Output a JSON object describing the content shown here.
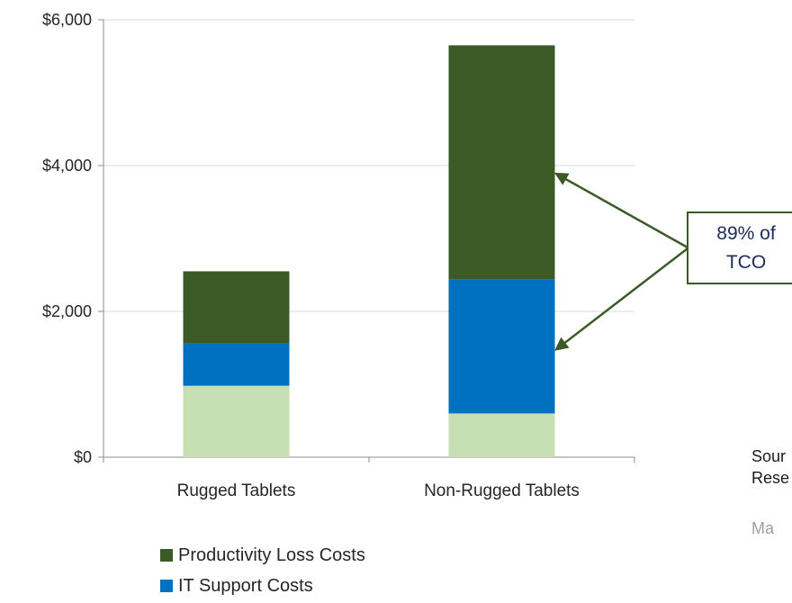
{
  "chart_data": {
    "type": "bar",
    "stacked": true,
    "categories": [
      "Rugged Tablets",
      "Non-Rugged Tablets"
    ],
    "series": [
      {
        "name": "",
        "values": [
          980,
          600
        ],
        "color": "#c6e0b4"
      },
      {
        "name": "IT Support Costs",
        "values": [
          580,
          1840
        ],
        "color": "#0070c0"
      },
      {
        "name": "Productivity Loss Costs",
        "values": [
          990,
          3210
        ],
        "color": "#3b5a26"
      }
    ],
    "yticks": [
      "$0",
      "$2,000",
      "$4,000",
      "$6,000"
    ],
    "ylim": [
      0,
      6000
    ],
    "gridlines": true,
    "legend_position": "bottom",
    "annotation": {
      "line1": "89% of",
      "line2": "TCO"
    }
  },
  "source_text": "Sour\nRese",
  "footer_text": "Ma"
}
